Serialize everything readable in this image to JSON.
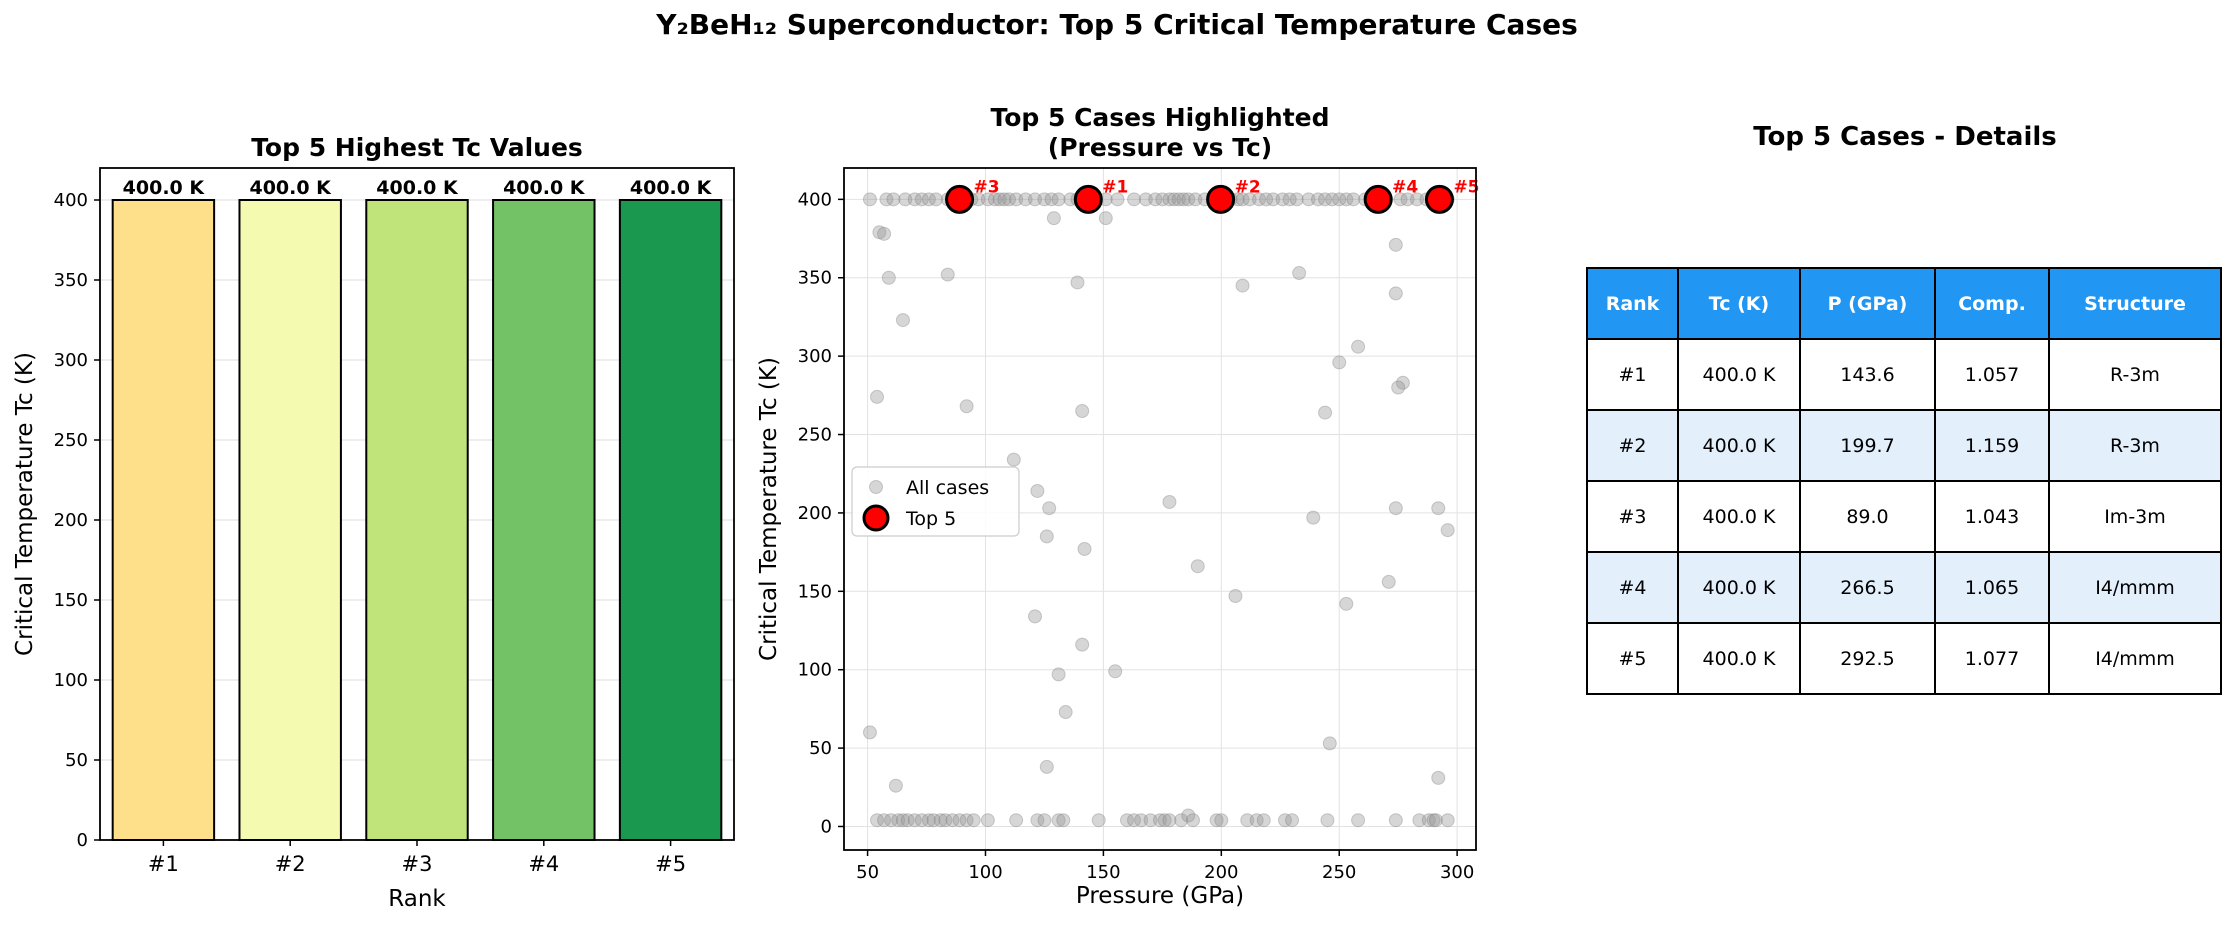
{
  "suptitle": "Y₂BeH₁₂ Superconductor: Top 5 Critical Temperature Cases",
  "colors": {
    "bars": [
      "#fee08b",
      "#f4fab0",
      "#c0e479",
      "#73c265",
      "#1a9850"
    ],
    "highlight": "#ff0000",
    "scatter_gray": "#999999",
    "table_header": "#2196f3",
    "table_alt_row": "#e3f0fc"
  },
  "chart_data": [
    {
      "type": "bar",
      "title": "Top 5 Highest Tc Values",
      "xlabel": "Rank",
      "ylabel": "Critical Temperature Tc (K)",
      "categories": [
        "#1",
        "#2",
        "#3",
        "#4",
        "#5"
      ],
      "values": [
        400.0,
        400.0,
        400.0,
        400.0,
        400.0
      ],
      "value_labels": [
        "400.0 K",
        "400.0 K",
        "400.0 K",
        "400.0 K",
        "400.0 K"
      ],
      "ylim": [
        0,
        420
      ],
      "yticks": [
        0,
        50,
        100,
        150,
        200,
        250,
        300,
        350,
        400
      ],
      "grid": "y"
    },
    {
      "type": "scatter",
      "title": "Top 5 Cases Highlighted\n(Pressure vs Tc)",
      "xlabel": "Pressure (GPa)",
      "ylabel": "Critical Temperature Tc (K)",
      "xlim": [
        40,
        308
      ],
      "ylim": [
        -15,
        420
      ],
      "xticks": [
        50,
        100,
        150,
        200,
        250,
        300
      ],
      "yticks": [
        0,
        50,
        100,
        150,
        200,
        250,
        300,
        350,
        400
      ],
      "grid": "both",
      "legend_position": "center-left",
      "series": [
        {
          "name": "All cases",
          "points": [
            [
              51,
              400
            ],
            [
              58,
              400
            ],
            [
              61,
              400
            ],
            [
              66,
              400
            ],
            [
              70,
              400
            ],
            [
              73,
              400
            ],
            [
              76,
              400
            ],
            [
              79,
              400
            ],
            [
              84,
              400
            ],
            [
              88,
              400
            ],
            [
              91,
              400
            ],
            [
              94,
              400
            ],
            [
              97,
              400
            ],
            [
              101,
              400
            ],
            [
              104,
              400
            ],
            [
              106,
              400
            ],
            [
              108,
              400
            ],
            [
              110,
              400
            ],
            [
              113,
              400
            ],
            [
              117,
              400
            ],
            [
              121,
              400
            ],
            [
              125,
              400
            ],
            [
              128,
              400
            ],
            [
              131,
              400
            ],
            [
              136,
              400
            ],
            [
              139,
              400
            ],
            [
              145,
              400
            ],
            [
              151,
              400
            ],
            [
              156,
              400
            ],
            [
              163,
              400
            ],
            [
              168,
              400
            ],
            [
              172,
              400
            ],
            [
              175,
              400
            ],
            [
              178,
              400
            ],
            [
              180,
              400
            ],
            [
              182,
              400
            ],
            [
              184,
              400
            ],
            [
              186,
              400
            ],
            [
              189,
              400
            ],
            [
              193,
              400
            ],
            [
              197,
              400
            ],
            [
              204,
              400
            ],
            [
              207,
              400
            ],
            [
              209,
              400
            ],
            [
              212,
              400
            ],
            [
              216,
              400
            ],
            [
              219,
              400
            ],
            [
              222,
              400
            ],
            [
              226,
              400
            ],
            [
              229,
              400
            ],
            [
              232,
              400
            ],
            [
              237,
              400
            ],
            [
              241,
              400
            ],
            [
              244,
              400
            ],
            [
              247,
              400
            ],
            [
              250,
              400
            ],
            [
              253,
              400
            ],
            [
              256,
              400
            ],
            [
              261,
              400
            ],
            [
              270,
              400
            ],
            [
              276,
              400
            ],
            [
              279,
              400
            ],
            [
              283,
              400
            ],
            [
              287,
              400
            ],
            [
              292,
              400
            ],
            [
              296,
              400
            ],
            [
              55,
              379
            ],
            [
              57,
              378
            ],
            [
              59,
              350
            ],
            [
              65,
              323
            ],
            [
              84,
              352
            ],
            [
              129,
              388
            ],
            [
              139,
              347
            ],
            [
              151,
              388
            ],
            [
              209,
              345
            ],
            [
              233,
              353
            ],
            [
              274,
              371
            ],
            [
              274,
              340
            ],
            [
              54,
              274
            ],
            [
              92,
              268
            ],
            [
              141,
              265
            ],
            [
              250,
              296
            ],
            [
              258,
              306
            ],
            [
              277,
              283
            ],
            [
              275,
              280
            ],
            [
              244,
              264
            ],
            [
              112,
              234
            ],
            [
              122,
              214
            ],
            [
              126,
              185
            ],
            [
              127,
              203
            ],
            [
              142,
              177
            ],
            [
              178,
              207
            ],
            [
              190,
              166
            ],
            [
              206,
              147
            ],
            [
              239,
              197
            ],
            [
              271,
              156
            ],
            [
              274,
              203
            ],
            [
              292,
              203
            ],
            [
              296,
              189
            ],
            [
              253,
              142
            ],
            [
              121,
              134
            ],
            [
              131,
              97
            ],
            [
              134,
              73
            ],
            [
              141,
              116
            ],
            [
              155,
              99
            ],
            [
              126,
              38
            ],
            [
              51,
              60
            ],
            [
              62,
              26
            ],
            [
              246,
              53
            ],
            [
              292,
              31
            ],
            [
              54,
              4
            ],
            [
              57,
              4
            ],
            [
              60,
              4
            ],
            [
              63,
              4
            ],
            [
              65,
              4
            ],
            [
              67,
              4
            ],
            [
              70,
              4
            ],
            [
              73,
              4
            ],
            [
              76,
              4
            ],
            [
              78,
              4
            ],
            [
              81,
              4
            ],
            [
              83,
              4
            ],
            [
              86,
              4
            ],
            [
              89,
              4
            ],
            [
              92,
              4
            ],
            [
              95,
              4
            ],
            [
              101,
              4
            ],
            [
              113,
              4
            ],
            [
              122,
              4
            ],
            [
              125,
              4
            ],
            [
              131,
              4
            ],
            [
              133,
              4
            ],
            [
              148,
              4
            ],
            [
              160,
              4
            ],
            [
              163,
              4
            ],
            [
              166,
              4
            ],
            [
              170,
              4
            ],
            [
              174,
              4
            ],
            [
              176,
              4
            ],
            [
              178,
              4
            ],
            [
              183,
              4
            ],
            [
              186,
              7
            ],
            [
              188,
              4
            ],
            [
              198,
              4
            ],
            [
              200,
              4
            ],
            [
              211,
              4
            ],
            [
              215,
              4
            ],
            [
              218,
              4
            ],
            [
              227,
              4
            ],
            [
              230,
              4
            ],
            [
              245,
              4
            ],
            [
              258,
              4
            ],
            [
              274,
              4
            ],
            [
              284,
              4
            ],
            [
              288,
              4
            ],
            [
              290,
              4
            ],
            [
              291,
              4
            ],
            [
              296,
              4
            ]
          ]
        },
        {
          "name": "Top 5",
          "points": [
            [
              143.6,
              400
            ],
            [
              199.7,
              400
            ],
            [
              89.0,
              400
            ],
            [
              266.5,
              400
            ],
            [
              292.5,
              400
            ]
          ],
          "labels": [
            "#1",
            "#2",
            "#3",
            "#4",
            "#5"
          ]
        }
      ]
    }
  ],
  "table": {
    "title": "Top 5 Cases - Details",
    "headers": [
      "Rank",
      "Tc (K)",
      "P (GPa)",
      "Comp.",
      "Structure"
    ],
    "rows": [
      [
        "#1",
        "400.0 K",
        "143.6",
        "1.057",
        "R-3m"
      ],
      [
        "#2",
        "400.0 K",
        "199.7",
        "1.159",
        "R-3m"
      ],
      [
        "#3",
        "400.0 K",
        "89.0",
        "1.043",
        "Im-3m"
      ],
      [
        "#4",
        "400.0 K",
        "266.5",
        "1.065",
        "I4/mmm"
      ],
      [
        "#5",
        "400.0 K",
        "292.5",
        "1.077",
        "I4/mmm"
      ]
    ]
  }
}
